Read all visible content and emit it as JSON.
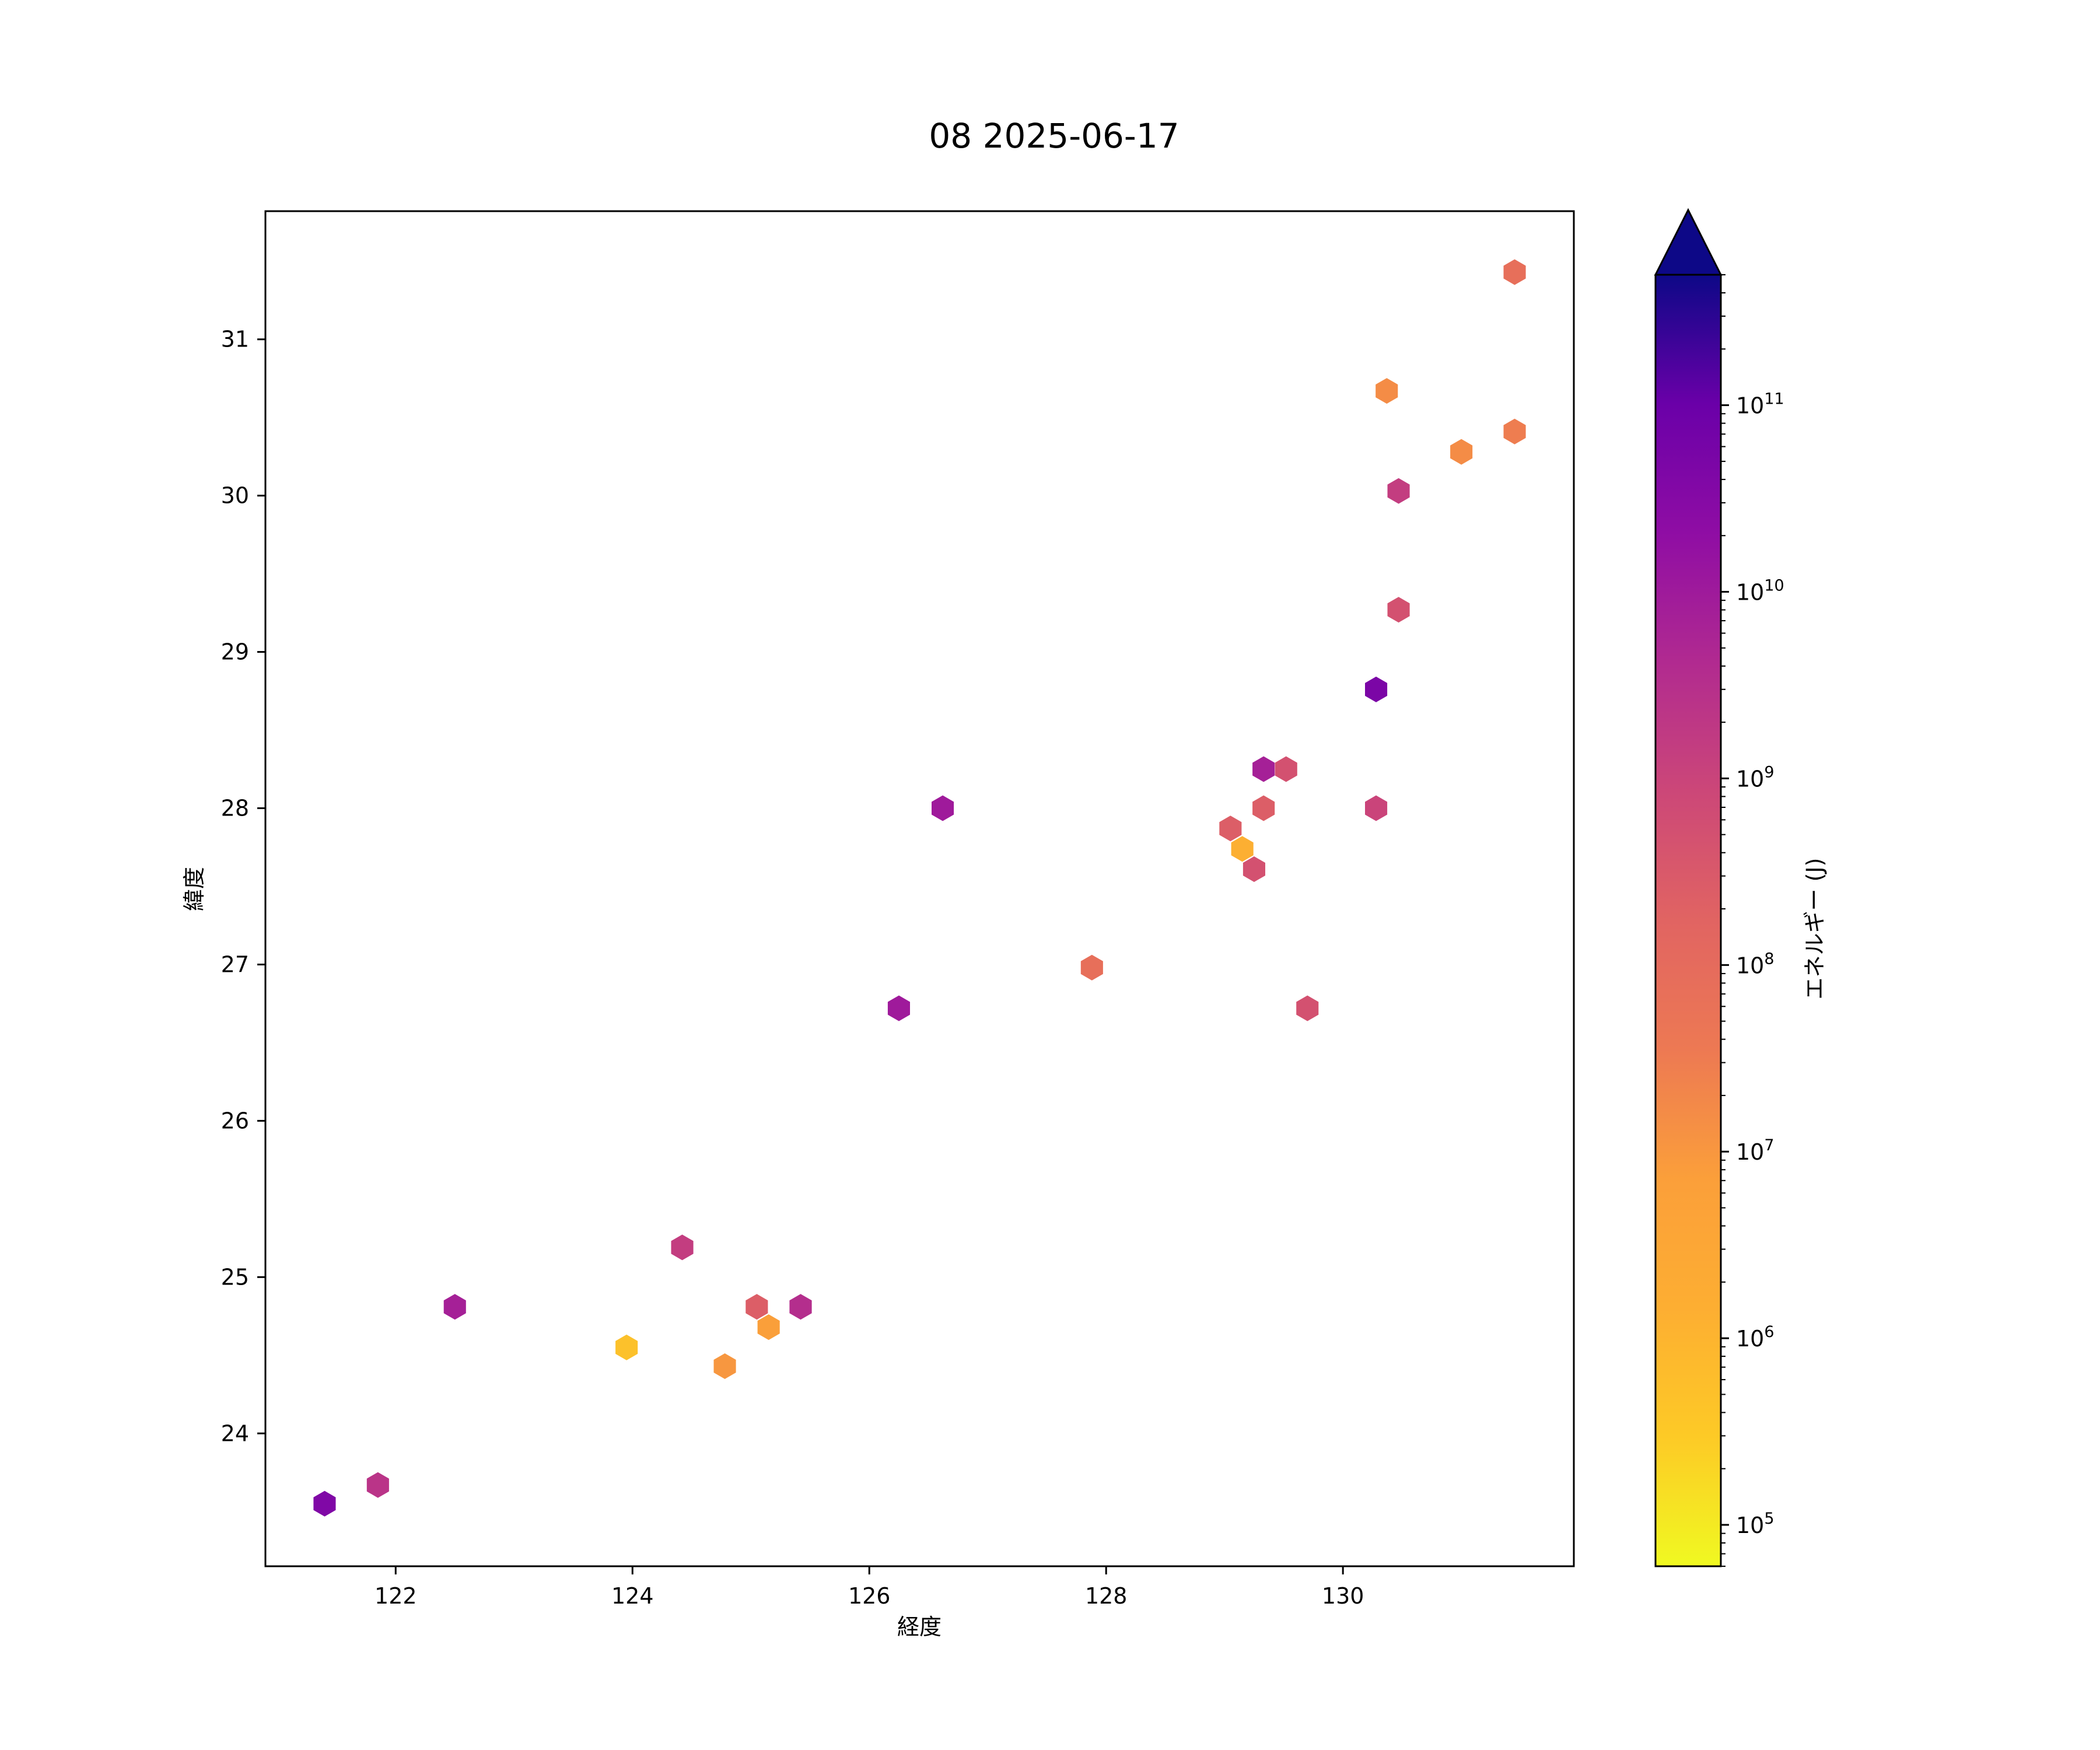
{
  "chart_data": {
    "type": "scatter",
    "marker": "hexagon",
    "title": "08 2025-06-17",
    "xlabel": "経度",
    "ylabel": "緯度",
    "xlim": [
      120.9,
      131.95
    ],
    "ylim": [
      23.15,
      31.82
    ],
    "xticks": [
      122,
      124,
      126,
      128,
      130
    ],
    "yticks": [
      24,
      25,
      26,
      27,
      28,
      29,
      30,
      31
    ],
    "grid": false,
    "colorbar": {
      "label": "エネルギー (J)",
      "scale": "log",
      "colormap": "plasma",
      "range": [
        60000,
        500000000000
      ],
      "ticks": [
        {
          "base": "10",
          "exp": "5",
          "value": 100000
        },
        {
          "base": "10",
          "exp": "6",
          "value": 1000000
        },
        {
          "base": "10",
          "exp": "7",
          "value": 10000000
        },
        {
          "base": "10",
          "exp": "8",
          "value": 100000000
        },
        {
          "base": "10",
          "exp": "9",
          "value": 1000000000
        },
        {
          "base": "10",
          "exp": "10",
          "value": 10000000000
        },
        {
          "base": "10",
          "exp": "11",
          "value": 100000000000
        }
      ],
      "extend": "max",
      "extend_color": "#0d0887"
    },
    "points": [
      {
        "lon": 121.4,
        "lat": 23.55,
        "energy": 8000000000
      },
      {
        "lon": 121.85,
        "lat": 23.67,
        "energy": 500000000
      },
      {
        "lon": 122.5,
        "lat": 24.81,
        "energy": 1500000000
      },
      {
        "lon": 123.95,
        "lat": 24.55,
        "energy": 500000
      },
      {
        "lon": 124.42,
        "lat": 25.19,
        "energy": 300000000
      },
      {
        "lon": 124.78,
        "lat": 24.43,
        "energy": 3000000
      },
      {
        "lon": 125.05,
        "lat": 24.81,
        "energy": 50000000
      },
      {
        "lon": 125.15,
        "lat": 24.68,
        "energy": 2000000
      },
      {
        "lon": 125.42,
        "lat": 24.81,
        "energy": 700000000
      },
      {
        "lon": 126.25,
        "lat": 26.72,
        "energy": 2000000000
      },
      {
        "lon": 126.62,
        "lat": 28.0,
        "energy": 2000000000
      },
      {
        "lon": 127.88,
        "lat": 26.98,
        "energy": 20000000
      },
      {
        "lon": 129.05,
        "lat": 27.87,
        "energy": 50000000
      },
      {
        "lon": 129.15,
        "lat": 27.74,
        "energy": 1000000
      },
      {
        "lon": 129.25,
        "lat": 27.61,
        "energy": 100000000
      },
      {
        "lon": 129.33,
        "lat": 28.25,
        "energy": 1500000000
      },
      {
        "lon": 129.33,
        "lat": 28.0,
        "energy": 50000000
      },
      {
        "lon": 129.52,
        "lat": 28.25,
        "energy": 100000000
      },
      {
        "lon": 129.7,
        "lat": 26.72,
        "energy": 100000000
      },
      {
        "lon": 130.28,
        "lat": 28.76,
        "energy": 10000000000
      },
      {
        "lon": 130.28,
        "lat": 28.0,
        "energy": 200000000
      },
      {
        "lon": 130.37,
        "lat": 30.67,
        "energy": 5000000
      },
      {
        "lon": 130.47,
        "lat": 30.03,
        "energy": 300000000
      },
      {
        "lon": 130.47,
        "lat": 29.27,
        "energy": 100000000
      },
      {
        "lon": 131.0,
        "lat": 30.28,
        "energy": 5000000
      },
      {
        "lon": 131.45,
        "lat": 30.41,
        "energy": 10000000
      },
      {
        "lon": 131.45,
        "lat": 31.43,
        "energy": 20000000
      }
    ]
  }
}
